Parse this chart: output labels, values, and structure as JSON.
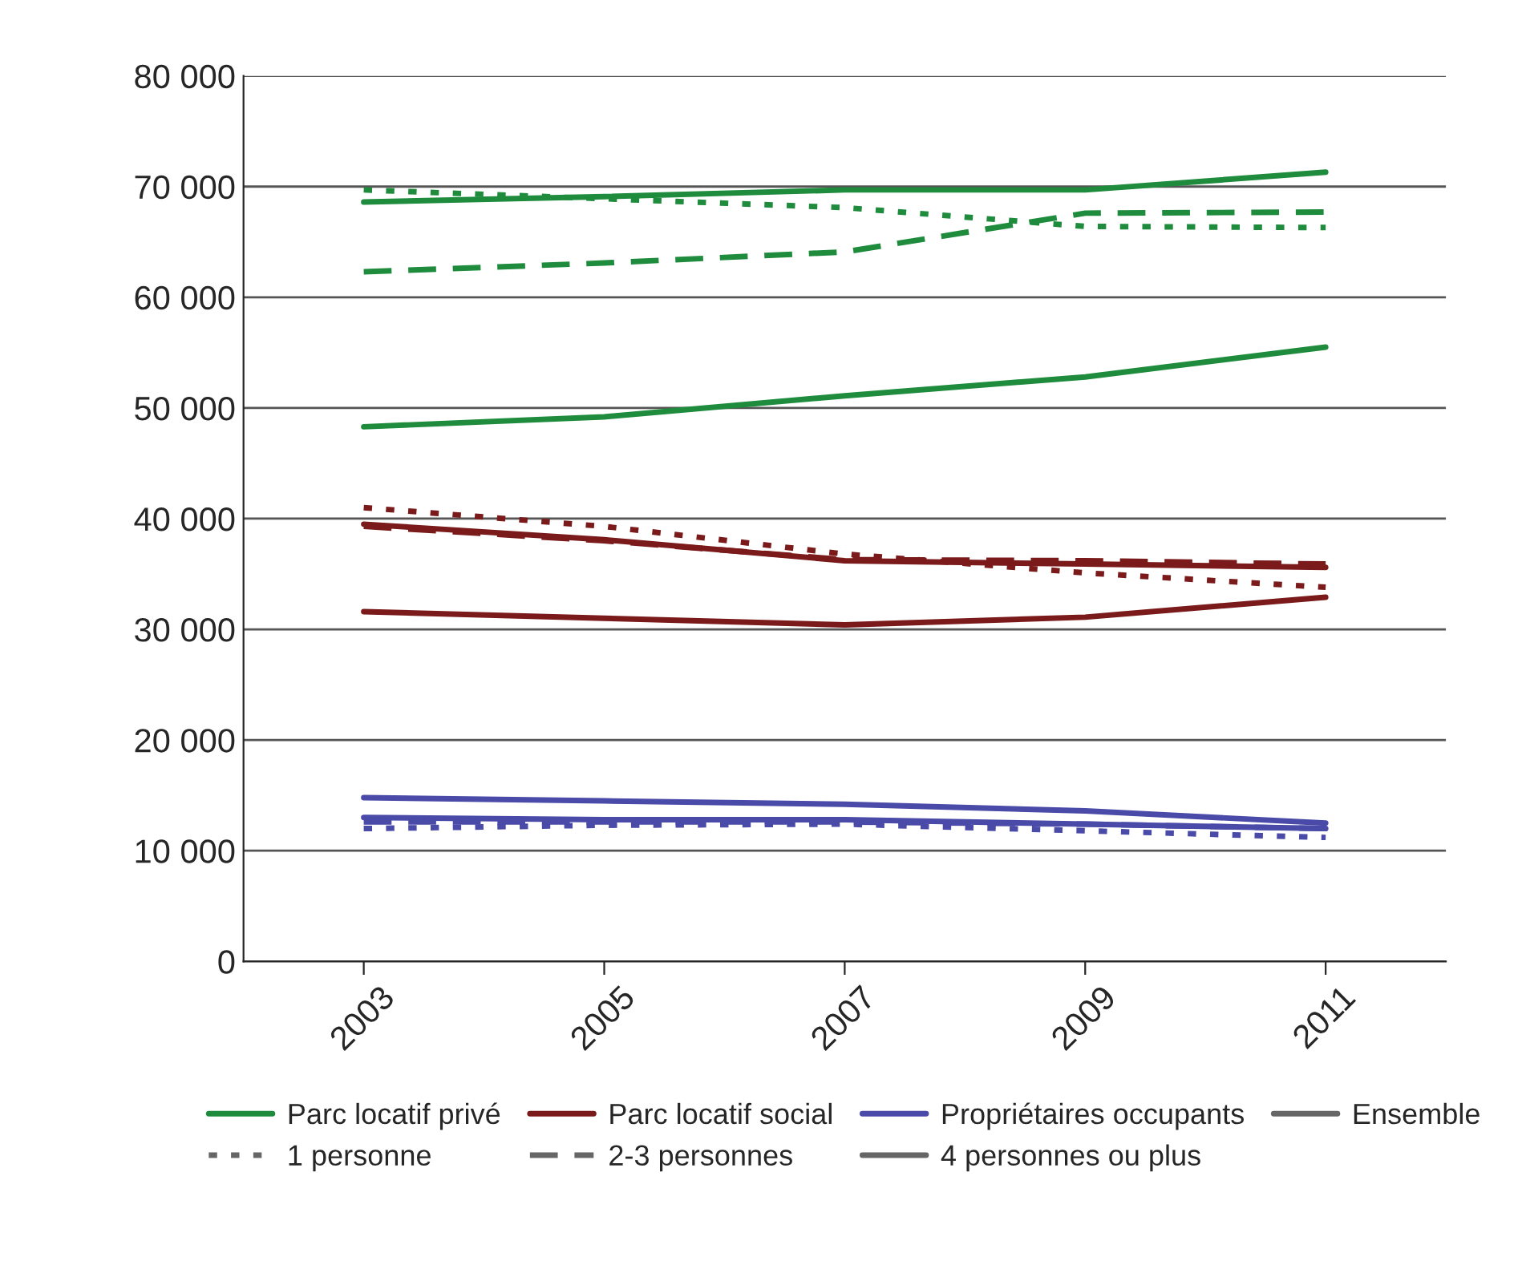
{
  "chart_data": {
    "type": "line",
    "categories": [
      "2003",
      "2005",
      "2007",
      "2009",
      "2011"
    ],
    "ylim": [
      0,
      80000
    ],
    "yticks": [
      {
        "value": 0,
        "label": "0"
      },
      {
        "value": 10000,
        "label": "10 000"
      },
      {
        "value": 20000,
        "label": "20 000"
      },
      {
        "value": 30000,
        "label": "30 000"
      },
      {
        "value": 40000,
        "label": "40 000"
      },
      {
        "value": 50000,
        "label": "50 000"
      },
      {
        "value": 60000,
        "label": "60 000"
      },
      {
        "value": 70000,
        "label": "70 000"
      },
      {
        "value": 80000,
        "label": "80 000"
      }
    ],
    "grid": "y",
    "legend": "bottom",
    "series": [
      {
        "color": "#1e8c3c",
        "line_style": "solid",
        "values": [
          68600,
          69100,
          69700,
          69700,
          71300
        ]
      },
      {
        "color": "#1e8c3c",
        "line_style": "dotted",
        "values": [
          69700,
          68900,
          68100,
          66400,
          66300
        ]
      },
      {
        "color": "#1e8c3c",
        "line_style": "dashed",
        "values": [
          62300,
          63100,
          64100,
          67600,
          67700
        ]
      },
      {
        "color": "#1e8c3c",
        "line_style": "solid",
        "values": [
          48300,
          49200,
          51100,
          52800,
          55500
        ]
      },
      {
        "color": "#7b1a1a",
        "line_style": "solid",
        "values": [
          39500,
          38100,
          36200,
          35900,
          35600
        ]
      },
      {
        "color": "#7b1a1a",
        "line_style": "dotted",
        "values": [
          41000,
          39300,
          36800,
          35100,
          33800
        ]
      },
      {
        "color": "#7b1a1a",
        "line_style": "dashed",
        "values": [
          39300,
          38000,
          36300,
          36200,
          35900
        ]
      },
      {
        "color": "#7b1a1a",
        "line_style": "solid",
        "values": [
          31600,
          31000,
          30400,
          31100,
          32900
        ]
      },
      {
        "color": "#4a4aa8",
        "line_style": "solid",
        "values": [
          13000,
          12800,
          12800,
          12400,
          12000
        ]
      },
      {
        "color": "#4a4aa8",
        "line_style": "dotted",
        "values": [
          12000,
          12300,
          12400,
          11800,
          11200
        ]
      },
      {
        "color": "#4a4aa8",
        "line_style": "dashed",
        "values": [
          12600,
          12600,
          12600,
          12400,
          12000
        ]
      },
      {
        "color": "#4a4aa8",
        "line_style": "solid",
        "values": [
          14800,
          14500,
          14200,
          13600,
          12500
        ]
      },
      {
        "name": "Parc locatif privé",
        "color": "#1e8c3c",
        "line_style": "solid",
        "values": [
          null,
          null,
          null,
          null,
          null
        ]
      },
      {
        "name": "1 personne",
        "color": "#666666",
        "line_style": "dotted",
        "values": [
          null,
          null,
          null,
          null,
          null
        ]
      },
      {
        "name": "Parc locatif social",
        "color": "#7b1a1a",
        "line_style": "solid",
        "values": [
          null,
          null,
          null,
          null,
          null
        ]
      },
      {
        "name": "2-3 personnes",
        "color": "#666666",
        "line_style": "dashed",
        "values": [
          null,
          null,
          null,
          null,
          null
        ]
      },
      {
        "name": "Propriétaires occupants",
        "color": "#4a4aa8",
        "line_style": "solid",
        "values": [
          null,
          null,
          null,
          null,
          null
        ]
      },
      {
        "name": "4 personnes ou plus",
        "color": "#666666",
        "line_style": "solid",
        "values": [
          null,
          null,
          null,
          null,
          null
        ]
      },
      {
        "name": "Ensemble",
        "color": "#666666",
        "line_style": "solid",
        "values": [
          null,
          null,
          null,
          null,
          null
        ]
      }
    ]
  }
}
